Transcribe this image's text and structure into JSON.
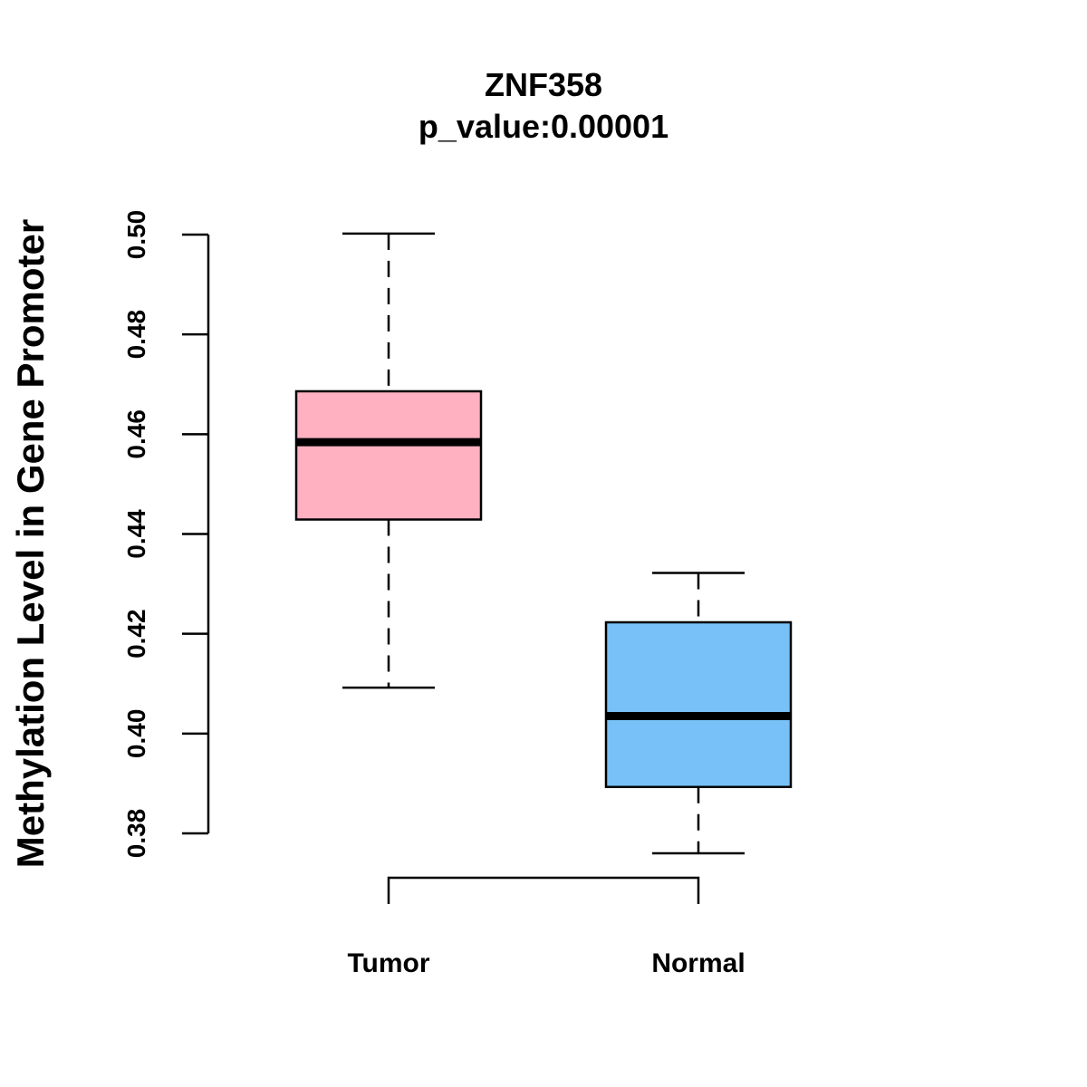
{
  "chart_data": {
    "type": "boxplot",
    "title": "ZNF358",
    "subtitle": "p_value:0.00001",
    "xlabel": "",
    "ylabel": "Methylation Level in Gene Promoter",
    "ylim": [
      0.38,
      0.5
    ],
    "yticks": [
      "0.38",
      "0.40",
      "0.42",
      "0.44",
      "0.46",
      "0.48",
      "0.50"
    ],
    "grid": false,
    "categories": [
      "Tumor",
      "Normal"
    ],
    "boxes": [
      {
        "name": "Tumor",
        "whisker_low": 0.4092,
        "q1": 0.4429,
        "median": 0.4584,
        "q3": 0.4686,
        "whisker_high": 0.5002,
        "color": "#FFB1C2"
      },
      {
        "name": "Normal",
        "whisker_low": 0.376,
        "q1": 0.3893,
        "median": 0.4035,
        "q3": 0.4223,
        "whisker_high": 0.4322,
        "color": "#78C1F8"
      }
    ],
    "comparison_bracket": {
      "from": "Tumor",
      "to": "Normal"
    }
  }
}
